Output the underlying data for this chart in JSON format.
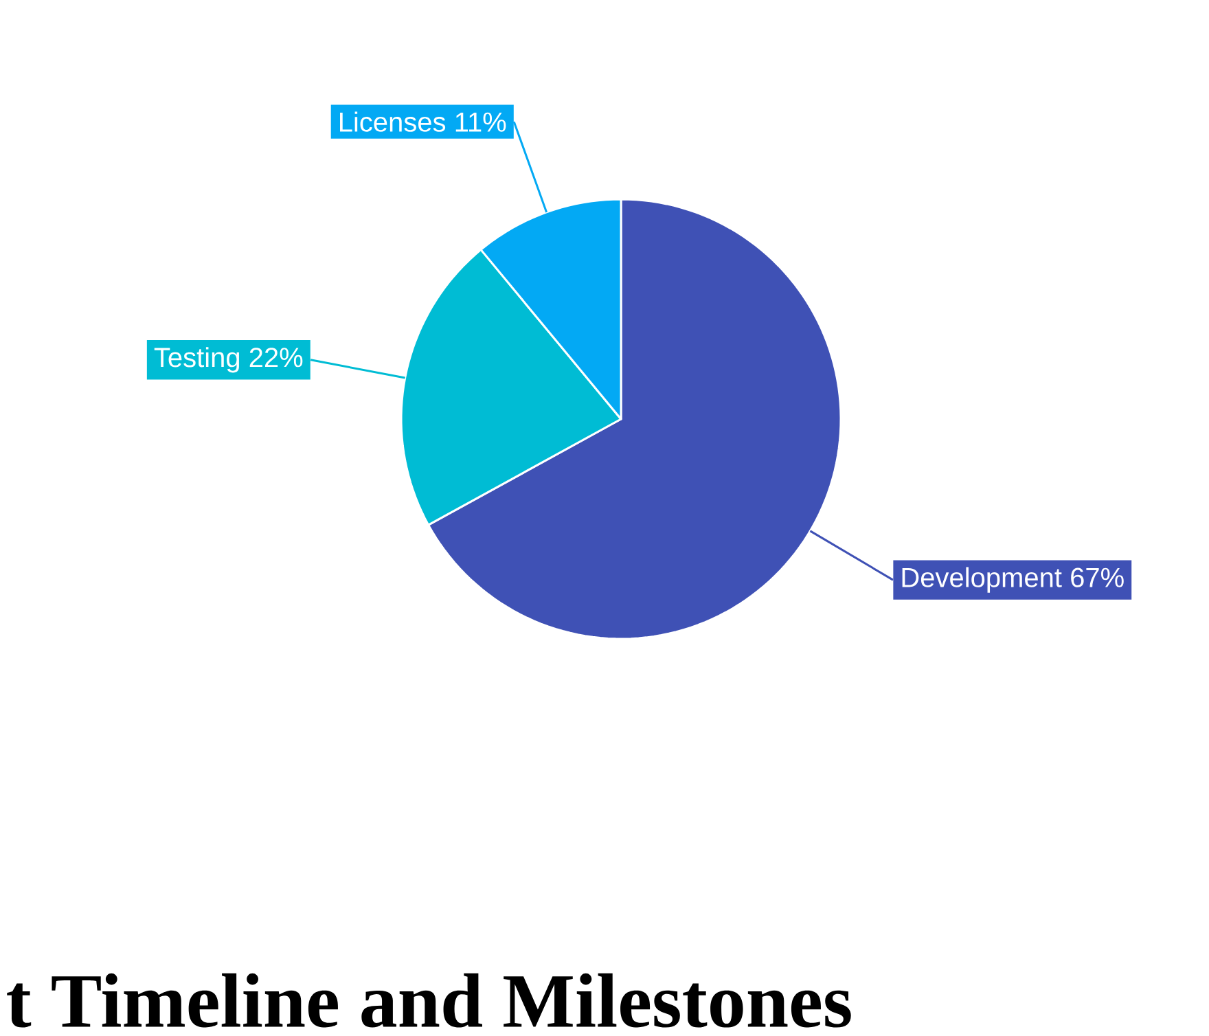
{
  "chart_data": {
    "type": "pie",
    "categories": [
      "Development",
      "Testing",
      "Licenses"
    ],
    "values": [
      67,
      22,
      11
    ],
    "colors": [
      "#3f51b5",
      "#00bcd4",
      "#03a9f4"
    ],
    "value_labels": [
      "67%",
      "22%",
      "11%"
    ],
    "annotations": [
      "t Timeline and Milestones"
    ]
  }
}
